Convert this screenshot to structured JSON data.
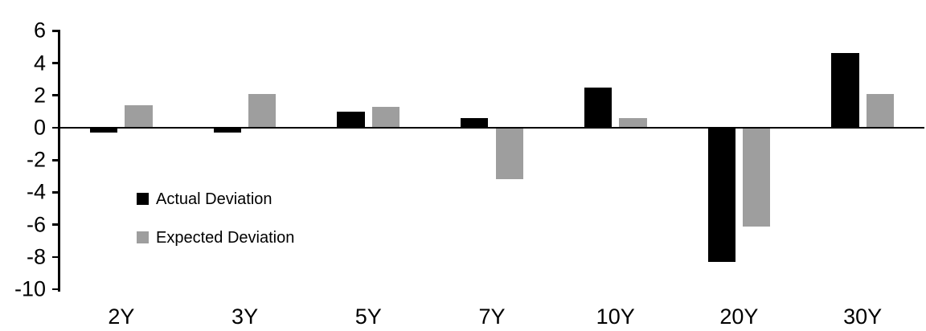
{
  "chart_data": {
    "type": "bar",
    "title": "",
    "xlabel": "",
    "ylabel": "",
    "categories": [
      "2Y",
      "3Y",
      "5Y",
      "7Y",
      "10Y",
      "20Y",
      "30Y"
    ],
    "series": [
      {
        "name": "Actual Deviation",
        "color": "#000000",
        "values": [
          -0.3,
          -0.3,
          1.0,
          0.6,
          2.5,
          -8.3,
          4.6
        ]
      },
      {
        "name": "Expected Deviation",
        "color": "#9e9e9e",
        "values": [
          1.4,
          2.1,
          1.3,
          -3.2,
          0.6,
          -6.1,
          2.1
        ]
      }
    ],
    "ylim": [
      -10,
      6
    ],
    "yticks": [
      6,
      4,
      2,
      0,
      -2,
      -4,
      -6,
      -8,
      -10
    ],
    "grid": false,
    "legend_position": "inside-left",
    "axis_color": "#000000",
    "background": "#ffffff"
  }
}
